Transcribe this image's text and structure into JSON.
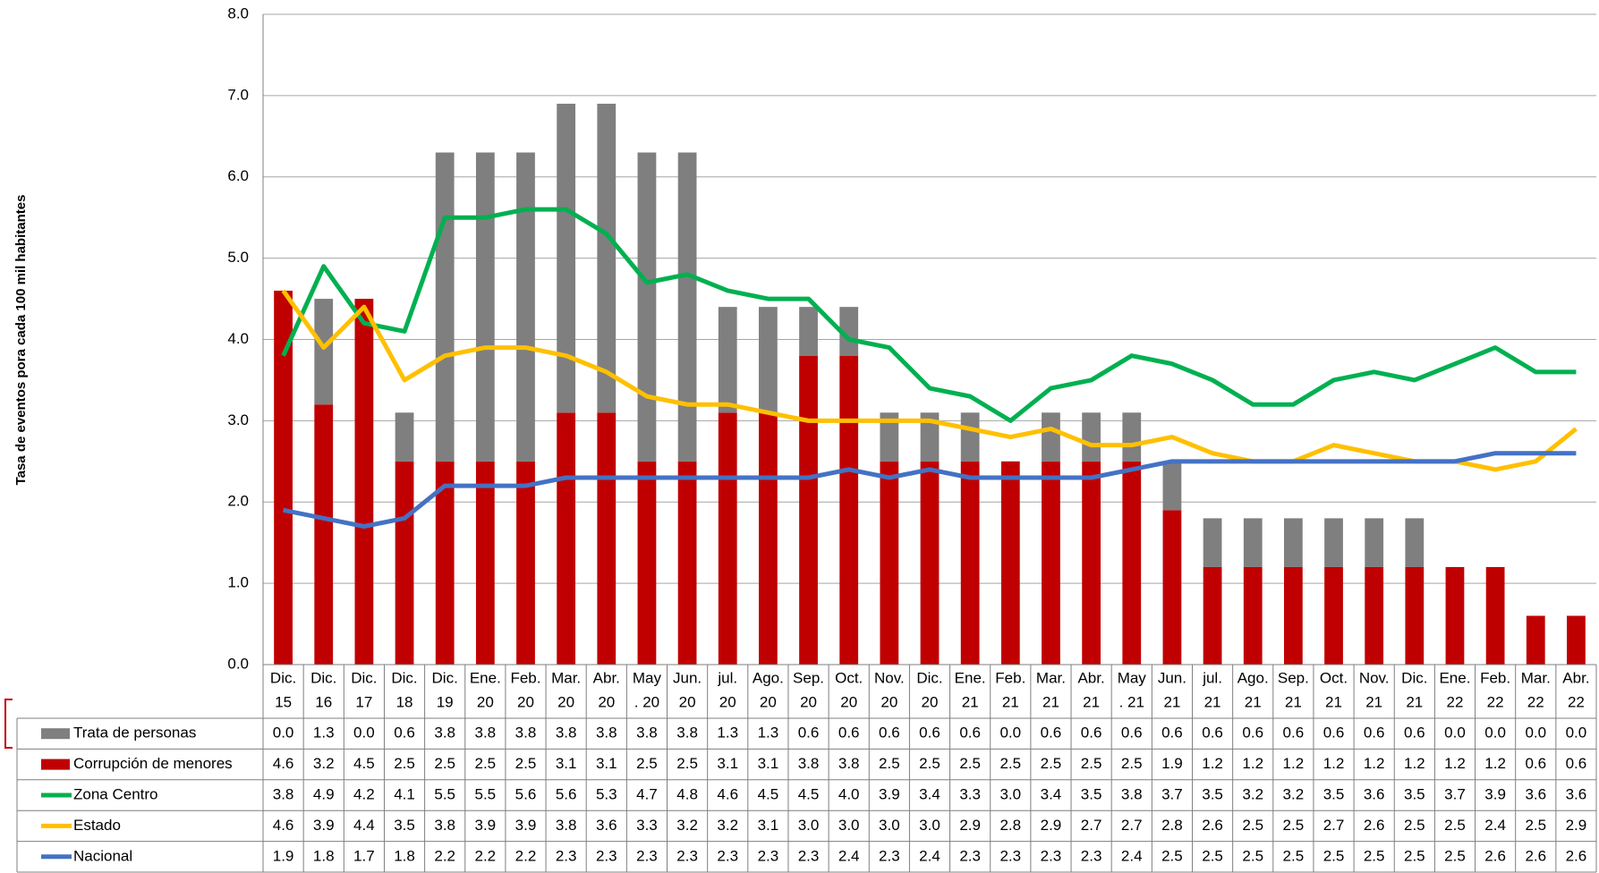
{
  "chart_data": {
    "type": "bar-line-table",
    "y_label": "Tasa de eventos pora cada 100 mil habitantes",
    "categories": [
      [
        "Dic.",
        "15"
      ],
      [
        "Dic.",
        "16"
      ],
      [
        "Dic.",
        "17"
      ],
      [
        "Dic.",
        "18"
      ],
      [
        "Dic.",
        "19"
      ],
      [
        "Ene.",
        "20"
      ],
      [
        "Feb.",
        "20"
      ],
      [
        "Mar.",
        "20"
      ],
      [
        "Abr.",
        "20"
      ],
      [
        "May",
        ". 20"
      ],
      [
        "Jun.",
        "20"
      ],
      [
        "jul.",
        "20"
      ],
      [
        "Ago.",
        "20"
      ],
      [
        "Sep.",
        "20"
      ],
      [
        "Oct.",
        "20"
      ],
      [
        "Nov.",
        "20"
      ],
      [
        "Dic.",
        "20"
      ],
      [
        "Ene.",
        "21"
      ],
      [
        "Feb.",
        "21"
      ],
      [
        "Mar.",
        "21"
      ],
      [
        "Abr.",
        "21"
      ],
      [
        "May",
        ". 21"
      ],
      [
        "Jun.",
        "21"
      ],
      [
        "jul.",
        "21"
      ],
      [
        "Ago.",
        "21"
      ],
      [
        "Sep.",
        "21"
      ],
      [
        "Oct.",
        "21"
      ],
      [
        "Nov.",
        "21"
      ],
      [
        "Dic.",
        "21"
      ],
      [
        "Ene.",
        "22"
      ],
      [
        "Feb.",
        "22"
      ],
      [
        "Mar.",
        "22"
      ],
      [
        "Abr.",
        "22"
      ]
    ],
    "series": [
      {
        "name": "Trata de personas",
        "type": "bar",
        "color": "#7f7f7f",
        "values": [
          0.0,
          1.3,
          0.0,
          0.6,
          3.8,
          3.8,
          3.8,
          3.8,
          3.8,
          3.8,
          3.8,
          1.3,
          1.3,
          0.6,
          0.6,
          0.6,
          0.6,
          0.6,
          0.0,
          0.6,
          0.6,
          0.6,
          0.6,
          0.6,
          0.6,
          0.6,
          0.6,
          0.6,
          0.6,
          0.0,
          0.0,
          0.0,
          0.0
        ],
        "value_labels": [
          "0.0",
          "1.3",
          "0.0",
          "0.6",
          "3.8",
          "3.8",
          "3.8",
          "3.8",
          "3.8",
          "3.8",
          "3.8",
          "1.3",
          "1.3",
          "0.6",
          "0.6",
          "0.6",
          "0.6",
          "0.6",
          "0.0",
          "0.6",
          "0.6",
          "0.6",
          "0.6",
          "0.6",
          "0.6",
          "0.6",
          "0.6",
          "0.6",
          "0.6",
          "0.0",
          "0.0",
          "0.0",
          "0.0"
        ]
      },
      {
        "name": "Corrupción de menores",
        "type": "bar",
        "color": "#c00000",
        "values": [
          4.6,
          3.2,
          4.5,
          2.5,
          2.5,
          2.5,
          2.5,
          3.1,
          3.1,
          2.5,
          2.5,
          3.1,
          3.1,
          3.8,
          3.8,
          2.5,
          2.5,
          2.5,
          2.5,
          2.5,
          2.5,
          2.5,
          1.9,
          1.2,
          1.2,
          1.2,
          1.2,
          1.2,
          1.2,
          1.2,
          1.2,
          0.6,
          0.6
        ],
        "value_labels": [
          "4.6",
          "3.2",
          "4.5",
          "2.5",
          "2.5",
          "2.5",
          "2.5",
          "3.1",
          "3.1",
          "2.5",
          "2.5",
          "3.1",
          "3.1",
          "3.8",
          "3.8",
          "2.5",
          "2.5",
          "2.5",
          "2.5",
          "2.5",
          "2.5",
          "2.5",
          "1.9",
          "1.2",
          "1.2",
          "1.2",
          "1.2",
          "1.2",
          "1.2",
          "1.2",
          "1.2",
          "0.6",
          "0.6"
        ]
      },
      {
        "name": "Zona Centro",
        "type": "line",
        "color": "#00b050",
        "values": [
          3.8,
          4.9,
          4.2,
          4.1,
          5.5,
          5.5,
          5.6,
          5.6,
          5.3,
          4.7,
          4.8,
          4.6,
          4.5,
          4.5,
          4.0,
          3.9,
          3.4,
          3.3,
          3.0,
          3.4,
          3.5,
          3.8,
          3.7,
          3.5,
          3.2,
          3.2,
          3.5,
          3.6,
          3.5,
          3.7,
          3.9,
          3.6,
          3.6
        ],
        "value_labels": [
          "3.8",
          "4.9",
          "4.2",
          "4.1",
          "5.5",
          "5.5",
          "5.6",
          "5.6",
          "5.3",
          "4.7",
          "4.8",
          "4.6",
          "4.5",
          "4.5",
          "4.0",
          "3.9",
          "3.4",
          "3.3",
          "3.0",
          "3.4",
          "3.5",
          "3.8",
          "3.7",
          "3.5",
          "3.2",
          "3.2",
          "3.5",
          "3.6",
          "3.5",
          "3.7",
          "3.9",
          "3.6",
          "3.6"
        ]
      },
      {
        "name": "Estado",
        "type": "line",
        "color": "#ffc000",
        "values": [
          4.6,
          3.9,
          4.4,
          3.5,
          3.8,
          3.9,
          3.9,
          3.8,
          3.6,
          3.3,
          3.2,
          3.2,
          3.1,
          3.0,
          3.0,
          3.0,
          3.0,
          2.9,
          2.8,
          2.9,
          2.7,
          2.7,
          2.8,
          2.6,
          2.5,
          2.5,
          2.7,
          2.6,
          2.5,
          2.5,
          2.4,
          2.5,
          2.9
        ],
        "value_labels": [
          "4.6",
          "3.9",
          "4.4",
          "3.5",
          "3.8",
          "3.9",
          "3.9",
          "3.8",
          "3.6",
          "3.3",
          "3.2",
          "3.2",
          "3.1",
          "3.0",
          "3.0",
          "3.0",
          "3.0",
          "2.9",
          "2.8",
          "2.9",
          "2.7",
          "2.7",
          "2.8",
          "2.6",
          "2.5",
          "2.5",
          "2.7",
          "2.6",
          "2.5",
          "2.5",
          "2.4",
          "2.5",
          "2.9"
        ]
      },
      {
        "name": "Nacional",
        "type": "line",
        "color": "#4472c4",
        "values": [
          1.9,
          1.8,
          1.7,
          1.8,
          2.2,
          2.2,
          2.2,
          2.3,
          2.3,
          2.3,
          2.3,
          2.3,
          2.3,
          2.3,
          2.4,
          2.3,
          2.4,
          2.3,
          2.3,
          2.3,
          2.3,
          2.4,
          2.5,
          2.5,
          2.5,
          2.5,
          2.5,
          2.5,
          2.5,
          2.5,
          2.6,
          2.6,
          2.6
        ],
        "value_labels": [
          "1.9",
          "1.8",
          "1.7",
          "1.8",
          "2.2",
          "2.2",
          "2.2",
          "2.3",
          "2.3",
          "2.3",
          "2.3",
          "2.3",
          "2.3",
          "2.3",
          "2.4",
          "2.3",
          "2.4",
          "2.3",
          "2.3",
          "2.3",
          "2.3",
          "2.4",
          "2.5",
          "2.5",
          "2.5",
          "2.5",
          "2.5",
          "2.5",
          "2.5",
          "2.5",
          "2.6",
          "2.6",
          "2.6"
        ]
      }
    ],
    "ylim": [
      0,
      8
    ],
    "yticks": [
      {
        "value": 0,
        "label": "0.0"
      },
      {
        "value": 1,
        "label": "1.0"
      },
      {
        "value": 2,
        "label": "2.0"
      },
      {
        "value": 3,
        "label": "3.0"
      },
      {
        "value": 4,
        "label": "4.0"
      },
      {
        "value": 5,
        "label": "5.0"
      },
      {
        "value": 6,
        "label": "6.0"
      },
      {
        "value": 7,
        "label": "7.0"
      },
      {
        "value": 8,
        "label": "8.0"
      }
    ],
    "grid": true
  }
}
